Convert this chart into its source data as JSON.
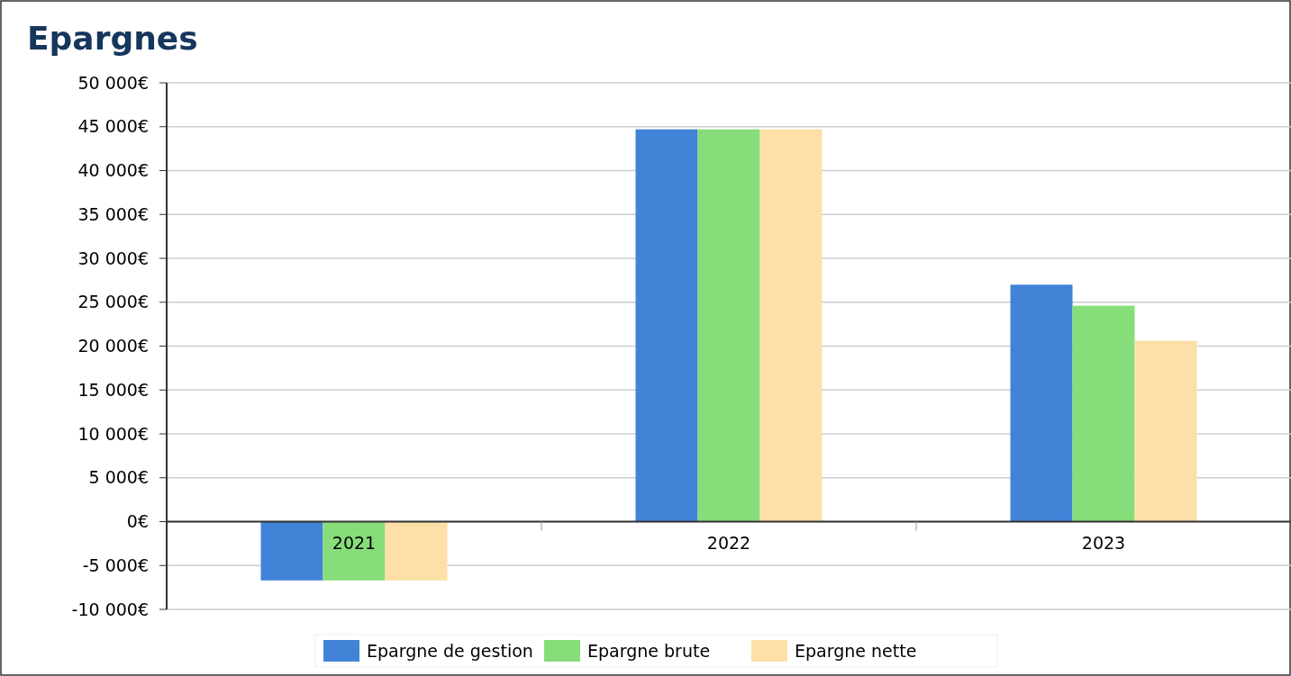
{
  "chart_data": {
    "type": "bar",
    "title": "Epargnes",
    "categories": [
      "2021",
      "2022",
      "2023"
    ],
    "series": [
      {
        "name": "Epargne de gestion",
        "color": "#4183d7",
        "values": [
          -6700,
          44700,
          27000
        ]
      },
      {
        "name": "Epargne brute",
        "color": "#87dd7a",
        "values": [
          -6700,
          44700,
          24600
        ]
      },
      {
        "name": "Epargne nette",
        "color": "#fce0a7",
        "values": [
          -6700,
          44700,
          20600
        ]
      }
    ],
    "ylim": [
      -10000,
      50000
    ],
    "yticks": [
      {
        "value": -10000,
        "label": "-10 000€"
      },
      {
        "value": -5000,
        "label": "-5 000€"
      },
      {
        "value": 0,
        "label": "0€"
      },
      {
        "value": 5000,
        "label": "5 000€"
      },
      {
        "value": 10000,
        "label": "10 000€"
      },
      {
        "value": 15000,
        "label": "15 000€"
      },
      {
        "value": 20000,
        "label": "20 000€"
      },
      {
        "value": 25000,
        "label": "25 000€"
      },
      {
        "value": 30000,
        "label": "30 000€"
      },
      {
        "value": 35000,
        "label": "35 000€"
      },
      {
        "value": 40000,
        "label": "40 000€"
      },
      {
        "value": 45000,
        "label": "45 000€"
      },
      {
        "value": 50000,
        "label": "50 000€"
      }
    ],
    "grid": "y",
    "legend": "bottom"
  }
}
